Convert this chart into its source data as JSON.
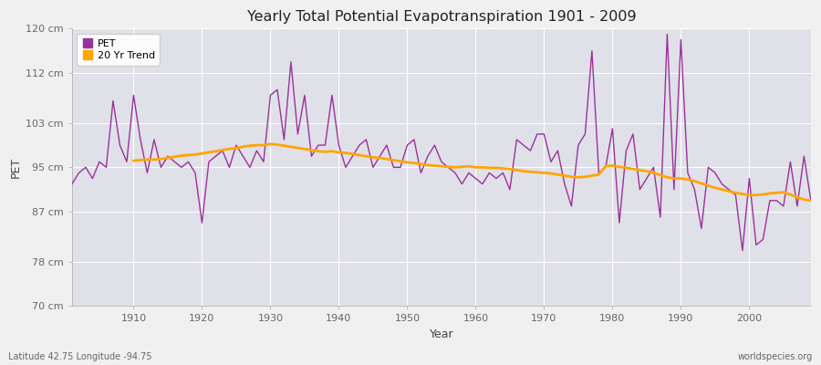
{
  "title": "Yearly Total Potential Evapotranspiration 1901 - 2009",
  "xlabel": "Year",
  "ylabel": "PET",
  "subtitle_left": "Latitude 42.75 Longitude -94.75",
  "subtitle_right": "worldspecies.org",
  "pet_color": "#993399",
  "trend_color": "#FFA500",
  "plot_bg_color": "#E0E0E8",
  "fig_bg_color": "#F0F0F0",
  "grid_color": "#FFFFFF",
  "ylim": [
    70,
    120
  ],
  "xlim": [
    1901,
    2009
  ],
  "yticks": [
    70,
    78,
    87,
    95,
    103,
    112,
    120
  ],
  "ytick_labels": [
    "70 cm",
    "78 cm",
    "87 cm",
    "95 cm",
    "103 cm",
    "112 cm",
    "120 cm"
  ],
  "xticks": [
    1910,
    1920,
    1930,
    1940,
    1950,
    1960,
    1970,
    1980,
    1990,
    2000
  ],
  "years": [
    1901,
    1902,
    1903,
    1904,
    1905,
    1906,
    1907,
    1908,
    1909,
    1910,
    1911,
    1912,
    1913,
    1914,
    1915,
    1916,
    1917,
    1918,
    1919,
    1920,
    1921,
    1922,
    1923,
    1924,
    1925,
    1926,
    1927,
    1928,
    1929,
    1930,
    1931,
    1932,
    1933,
    1934,
    1935,
    1936,
    1937,
    1938,
    1939,
    1940,
    1941,
    1942,
    1943,
    1944,
    1945,
    1946,
    1947,
    1948,
    1949,
    1950,
    1951,
    1952,
    1953,
    1954,
    1955,
    1956,
    1957,
    1958,
    1959,
    1960,
    1961,
    1962,
    1963,
    1964,
    1965,
    1966,
    1967,
    1968,
    1969,
    1970,
    1971,
    1972,
    1973,
    1974,
    1975,
    1976,
    1977,
    1978,
    1979,
    1980,
    1981,
    1982,
    1983,
    1984,
    1985,
    1986,
    1987,
    1988,
    1989,
    1990,
    1991,
    1992,
    1993,
    1994,
    1995,
    1996,
    1997,
    1998,
    1999,
    2000,
    2001,
    2002,
    2003,
    2004,
    2005,
    2006,
    2007,
    2008,
    2009
  ],
  "pet_values": [
    92,
    94,
    95,
    93,
    96,
    95,
    107,
    99,
    96,
    108,
    100,
    94,
    100,
    95,
    97,
    96,
    95,
    96,
    94,
    85,
    96,
    97,
    98,
    95,
    99,
    97,
    95,
    98,
    96,
    108,
    109,
    100,
    114,
    101,
    108,
    97,
    99,
    99,
    108,
    99,
    95,
    97,
    99,
    100,
    95,
    97,
    99,
    95,
    95,
    99,
    100,
    94,
    97,
    99,
    96,
    95,
    94,
    92,
    94,
    93,
    92,
    94,
    93,
    94,
    91,
    100,
    99,
    98,
    101,
    101,
    96,
    98,
    92,
    88,
    99,
    101,
    116,
    94,
    95,
    102,
    85,
    98,
    101,
    91,
    93,
    95,
    86,
    119,
    91,
    118,
    94,
    91,
    84,
    95,
    94,
    92,
    91,
    90,
    80,
    93,
    81,
    82,
    89,
    89,
    88,
    96,
    88,
    97,
    89
  ],
  "trend_years": [
    1910,
    1911,
    1912,
    1913,
    1914,
    1915,
    1916,
    1917,
    1918,
    1919,
    1920,
    1921,
    1922,
    1923,
    1924,
    1925,
    1926,
    1927,
    1928,
    1929,
    1930,
    1931,
    1932,
    1933,
    1934,
    1935,
    1936,
    1937,
    1938,
    1939,
    1940,
    1941,
    1942,
    1943,
    1944,
    1945,
    1946,
    1947,
    1948,
    1949,
    1950,
    1951,
    1952,
    1953,
    1954,
    1955,
    1956,
    1957,
    1958,
    1959,
    1960,
    1961,
    1962,
    1963,
    1964,
    1965,
    1966,
    1967,
    1968,
    1969,
    1970,
    1971,
    1972,
    1973,
    1974,
    1975,
    1976,
    1977,
    1978,
    1979,
    1980,
    1981,
    1982,
    1983,
    1984,
    1985,
    1986,
    1987,
    1988,
    1989,
    1990,
    1991,
    1992,
    1993,
    1994,
    1995,
    1996,
    1997,
    1998,
    1999,
    2000,
    2001,
    2002,
    2003,
    2004,
    2005,
    2006,
    2007,
    2008,
    2009
  ],
  "trend_values": [
    96.2,
    96.3,
    96.4,
    96.4,
    96.5,
    96.7,
    96.9,
    97.1,
    97.2,
    97.3,
    97.5,
    97.7,
    97.9,
    98.1,
    98.3,
    98.5,
    98.7,
    98.9,
    99.0,
    99.0,
    99.2,
    99.1,
    98.9,
    98.7,
    98.5,
    98.3,
    98.1,
    97.9,
    97.8,
    97.9,
    97.7,
    97.6,
    97.4,
    97.2,
    97.0,
    96.8,
    96.7,
    96.5,
    96.3,
    96.1,
    95.9,
    95.8,
    95.6,
    95.4,
    95.3,
    95.2,
    95.1,
    95.0,
    95.1,
    95.2,
    95.0,
    95.0,
    94.9,
    94.9,
    94.8,
    94.7,
    94.5,
    94.3,
    94.2,
    94.1,
    94.0,
    93.9,
    93.7,
    93.5,
    93.3,
    93.2,
    93.3,
    93.5,
    93.7,
    95.2,
    95.3,
    95.1,
    94.9,
    94.7,
    94.5,
    94.3,
    94.0,
    93.6,
    93.2,
    93.0,
    93.0,
    92.8,
    92.5,
    92.1,
    91.7,
    91.3,
    91.0,
    90.7,
    90.4,
    90.2,
    90.0,
    90.0,
    90.1,
    90.3,
    90.4,
    90.5,
    90.1,
    89.6,
    89.2,
    89.0
  ]
}
